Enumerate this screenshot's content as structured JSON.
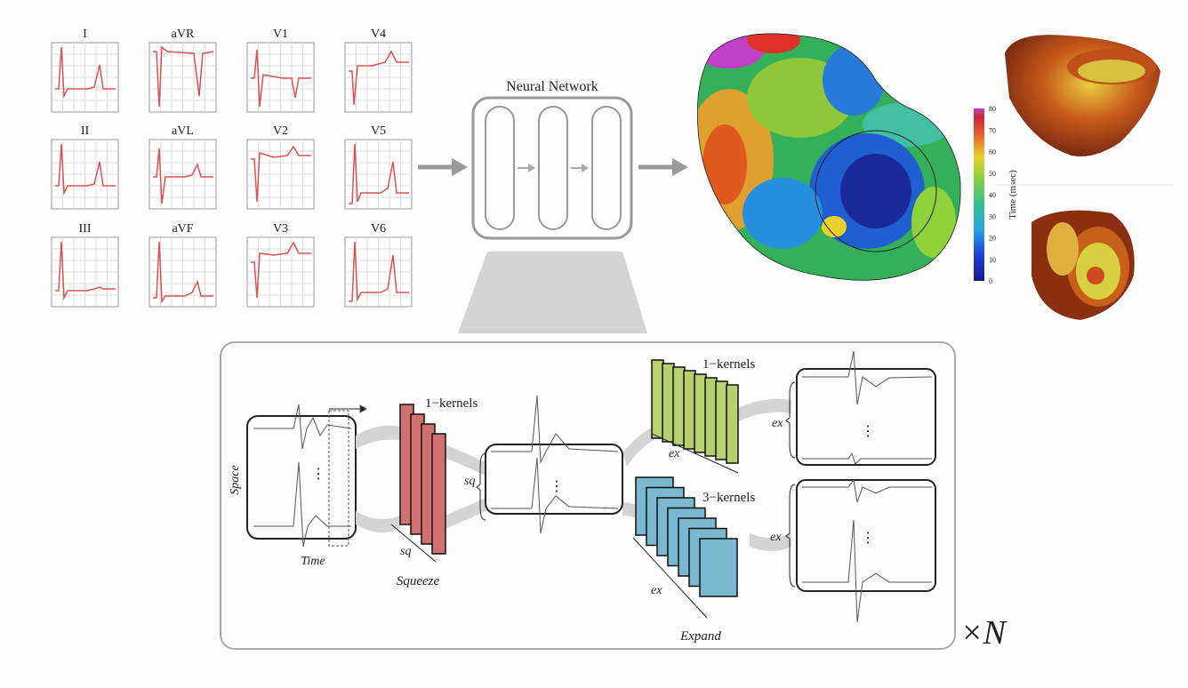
{
  "ecg_leads": [
    "I",
    "aVR",
    "V1",
    "V4",
    "II",
    "aVL",
    "V2",
    "V5",
    "III",
    "aVF",
    "V3",
    "V6"
  ],
  "network": {
    "title": "Neural Network"
  },
  "colorbar": {
    "label": "Time (msec)",
    "ticks": [
      0,
      10,
      20,
      30,
      40,
      50,
      60,
      70,
      80
    ]
  },
  "block": {
    "space_label": "Space",
    "time_label": "Time",
    "squeeze_label": "Squeeze",
    "expand_label": "Expand",
    "kernel_labels": [
      "1−kernels",
      "1−kernels",
      "3−kernels"
    ],
    "sq_labels": [
      "sq",
      "sq"
    ],
    "ex_labels": [
      "ex",
      "ex",
      "ex",
      "ex"
    ],
    "repeat_label": "×N"
  }
}
